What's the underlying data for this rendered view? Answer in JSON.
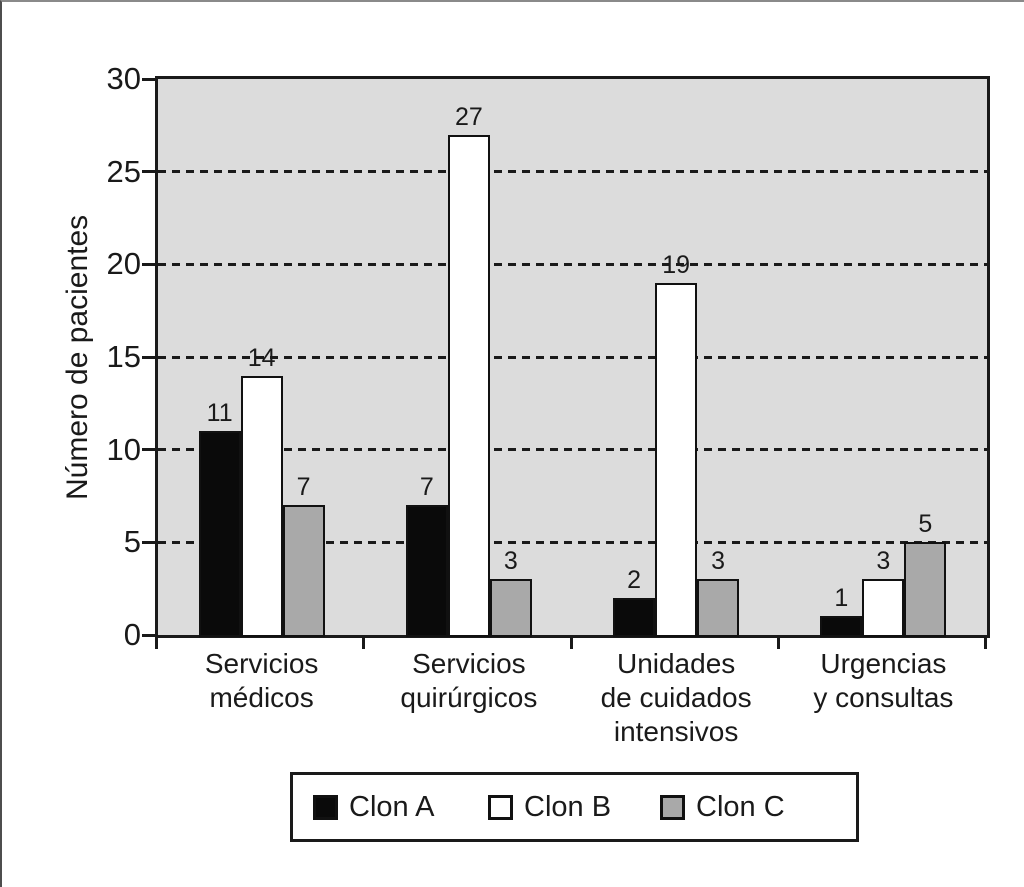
{
  "chart_data": {
    "type": "bar",
    "title": "",
    "ylabel": "Número de pacientes",
    "xlabel": "",
    "ylim": [
      0,
      30
    ],
    "yticks": [
      0,
      5,
      10,
      15,
      20,
      25,
      30
    ],
    "gridlines": [
      5,
      10,
      15,
      20,
      25
    ],
    "grid_style": "dashed",
    "legend_position": "bottom",
    "plot_background": "#dcdcdc",
    "axis_color": "#1a1a1a",
    "categories": [
      "Servicios médicos",
      "Servicios quirúrgicos",
      "Unidades de cuidados intensivos",
      "Urgencias y consultas"
    ],
    "category_lines": [
      [
        "Servicios",
        "médicos"
      ],
      [
        "Servicios",
        "quirúrgicos"
      ],
      [
        "Unidades",
        "de cuidados",
        "intensivos"
      ],
      [
        "Urgencias",
        "y consultas"
      ]
    ],
    "series": [
      {
        "name": "Clon A",
        "color": "#0a0a0a",
        "values": [
          11,
          7,
          2,
          1
        ]
      },
      {
        "name": "Clon B",
        "color": "#ffffff",
        "values": [
          14,
          27,
          19,
          3
        ]
      },
      {
        "name": "Clon C",
        "color": "#a9a9a9",
        "values": [
          7,
          3,
          3,
          5
        ]
      }
    ]
  }
}
